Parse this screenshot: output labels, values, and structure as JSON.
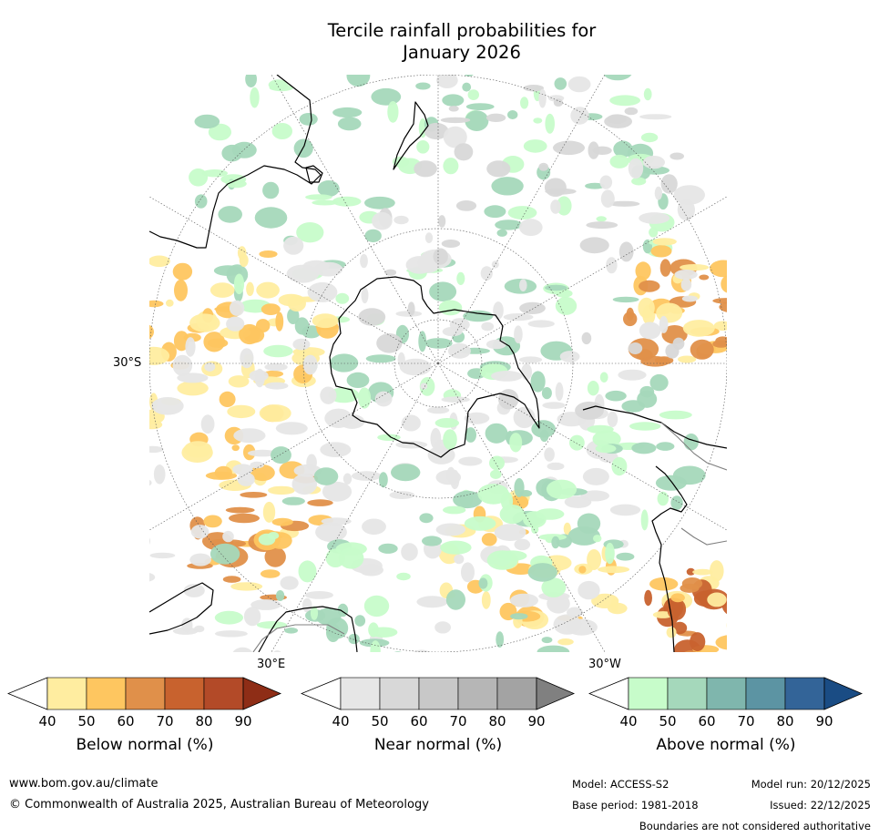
{
  "title_line1": "Tercile rainfall probabilities for",
  "title_line2": "January 2026",
  "map": {
    "projection": "south polar stereographic",
    "lat_label": "30°S",
    "lon_labels": [
      "30°E",
      "30°W"
    ],
    "colors": {
      "below": [
        "#ffeda0",
        "#fec660",
        "#e0904a",
        "#c8622e",
        "#b34a28",
        "#8e2d16"
      ],
      "near": [
        "#e6e6e6",
        "#d8d8d8",
        "#c8c8c8",
        "#b6b6b6",
        "#a3a3a3",
        "#808080"
      ],
      "above": [
        "#c7fcca",
        "#a5d8bb",
        "#7fb6ad",
        "#5c94a3",
        "#336498",
        "#1a4c84"
      ],
      "land": "#000000"
    }
  },
  "colorbars": [
    {
      "name": "Below normal (%)",
      "ticks": [
        "40",
        "50",
        "60",
        "70",
        "80",
        "90"
      ]
    },
    {
      "name": "Near normal (%)",
      "ticks": [
        "40",
        "50",
        "60",
        "70",
        "80",
        "90"
      ]
    },
    {
      "name": "Above normal (%)",
      "ticks": [
        "40",
        "50",
        "60",
        "70",
        "80",
        "90"
      ]
    }
  ],
  "footer": {
    "website": "www.bom.gov.au/climate",
    "copyright": "© Commonwealth of Australia 2025, Australian Bureau of Meteorology",
    "model": "Model: ACCESS-S2",
    "base_period": "Base period: 1981-2018",
    "model_run": "Model run: 20/12/2025",
    "issued": "Issued: 22/12/2025",
    "disclaimer": "Boundaries are not considered authoritative"
  }
}
